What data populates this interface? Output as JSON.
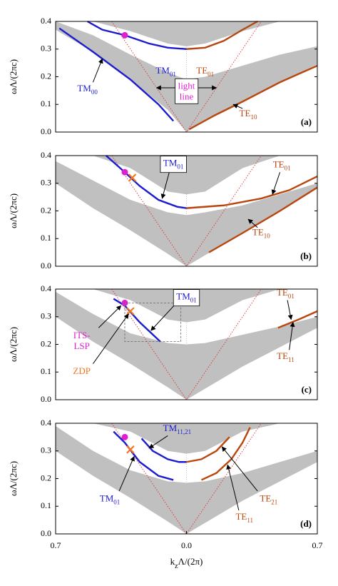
{
  "chart_data": [
    {
      "type": "band-diagram",
      "ylabel": "ωΛ/(2πc)",
      "panel_label": "(a)",
      "xlim": [
        -0.7,
        0.7
      ],
      "ylim": [
        0,
        0.4
      ],
      "yticks": [
        {
          "value": 0,
          "label": "0.0"
        },
        0.1,
        0.2,
        0.3,
        0.4
      ],
      "band_color": "#c0c0c0",
      "band_x": [
        -0.7,
        -0.5,
        -0.3,
        -0.1,
        0,
        0.1,
        0.3,
        0.5,
        0.7
      ],
      "bands": [
        {
          "lower": [
            0.4,
            0.4,
            0.365,
            0.32,
            0.31,
            0.32,
            0.365,
            0.4,
            0.4
          ],
          "upper": [
            0.4,
            0.4,
            0.4,
            0.4,
            0.4,
            0.4,
            0.4,
            0.4,
            0.4
          ]
        },
        {
          "lower": [
            0.37,
            0.29,
            0.19,
            0.08,
            0,
            0.04,
            0.11,
            0.18,
            0.245
          ],
          "upper": [
            0.4,
            0.35,
            0.28,
            0.215,
            0.19,
            0.2,
            0.24,
            0.28,
            0.31
          ]
        }
      ],
      "light_line": {
        "color": "#e03030",
        "x": [
          -0.4,
          0,
          0.4
        ],
        "y": [
          0.4,
          0,
          0.4
        ]
      },
      "series": [
        {
          "color": "#1c1ccf",
          "x": [
            -0.68,
            -0.5,
            -0.3,
            -0.15,
            -0.07
          ],
          "values": [
            0.375,
            0.29,
            0.19,
            0.1,
            0.04
          ]
        },
        {
          "color": "#1c1ccf",
          "x": [
            -0.53,
            -0.45,
            -0.33,
            -0.2,
            -0.1,
            0
          ],
          "values": [
            0.4,
            0.37,
            0.35,
            0.32,
            0.305,
            0.3
          ]
        },
        {
          "color": "#b8470f",
          "x": [
            0,
            0.1,
            0.2,
            0.3,
            0.38
          ],
          "values": [
            0.3,
            0.305,
            0.33,
            0.37,
            0.4
          ]
        },
        {
          "color": "#b8470f",
          "x": [
            0.015,
            0.15,
            0.3,
            0.5,
            0.7
          ],
          "values": [
            0.01,
            0.06,
            0.11,
            0.18,
            0.24
          ]
        }
      ],
      "markers": [
        {
          "shape": "dot",
          "color": "#e020d0",
          "x": -0.33,
          "y": 0.35
        }
      ],
      "annotations": [
        {
          "text": "TM",
          "sub": "00",
          "color": "#1c1ccf"
        },
        {
          "text": "TM",
          "sub": "01",
          "color": "#1c1ccf"
        },
        {
          "text": "TE",
          "sub": "01",
          "color": "#b8470f"
        },
        {
          "text": "TE",
          "sub": "10",
          "color": "#b8470f"
        },
        {
          "lines": [
            "light",
            "line"
          ],
          "color": "#e020d0",
          "boxed": true
        }
      ]
    },
    {
      "type": "band-diagram",
      "ylabel": "ωΛ/(2πc)",
      "panel_label": "(b)",
      "xlim": [
        -0.7,
        0.7
      ],
      "ylim": [
        0,
        0.4
      ],
      "yticks": [
        {
          "value": 0,
          "label": "0.0"
        },
        0.1,
        0.2,
        0.3,
        0.4
      ],
      "band_color": "#c0c0c0",
      "band_x": [
        -0.7,
        -0.5,
        -0.3,
        -0.1,
        0,
        0.1,
        0.3,
        0.5,
        0.7
      ],
      "bands": [
        {
          "lower": [
            0.4,
            0.4,
            0.355,
            0.27,
            0.26,
            0.27,
            0.355,
            0.4,
            0.4
          ],
          "upper": [
            0.4,
            0.4,
            0.4,
            0.4,
            0.4,
            0.4,
            0.4,
            0.4,
            0.4
          ]
        },
        {
          "lower": [
            0.3,
            0.21,
            0.13,
            0.045,
            0,
            0.04,
            0.12,
            0.2,
            0.285
          ],
          "upper": [
            0.38,
            0.31,
            0.24,
            0.195,
            0.185,
            0.195,
            0.22,
            0.26,
            0.3
          ]
        }
      ],
      "light_line": {
        "color": "#e03030",
        "x": [
          -0.4,
          0,
          0.4
        ],
        "y": [
          0.4,
          0,
          0.4
        ]
      },
      "series": [
        {
          "color": "#1c1ccf",
          "x": [
            -0.43,
            -0.38,
            -0.33,
            -0.25,
            -0.15,
            -0.05,
            0
          ],
          "values": [
            0.4,
            0.37,
            0.34,
            0.29,
            0.24,
            0.215,
            0.21
          ]
        },
        {
          "color": "#b8470f",
          "x": [
            0,
            0.2,
            0.4,
            0.55,
            0.7
          ],
          "values": [
            0.21,
            0.22,
            0.245,
            0.275,
            0.325
          ]
        },
        {
          "color": "#b8470f",
          "x": [
            0.12,
            0.3,
            0.5,
            0.7
          ],
          "values": [
            0.05,
            0.12,
            0.2,
            0.285
          ]
        }
      ],
      "markers": [
        {
          "shape": "dot",
          "color": "#e020d0",
          "x": -0.33,
          "y": 0.34
        },
        {
          "shape": "cross",
          "color": "#f07820",
          "x": -0.29,
          "y": 0.32
        }
      ],
      "annotations": [
        {
          "text": "TM",
          "sub": "01",
          "color": "#1c1ccf",
          "boxed": true
        },
        {
          "text": "TE",
          "sub": "01",
          "color": "#b8470f"
        },
        {
          "text": "TE",
          "sub": "10",
          "color": "#b8470f"
        }
      ]
    },
    {
      "type": "band-diagram",
      "ylabel": "ωΛ/(2πc)",
      "panel_label": "(c)",
      "xlim": [
        -0.7,
        0.7
      ],
      "ylim": [
        0,
        0.4
      ],
      "yticks": [
        {
          "value": 0,
          "label": "0.0"
        },
        0.1,
        0.2,
        0.3,
        0.4
      ],
      "band_color": "#c0c0c0",
      "band_x": [
        -0.7,
        -0.5,
        -0.3,
        -0.1,
        0,
        0.1,
        0.3,
        0.5,
        0.7
      ],
      "bands": [
        {
          "lower": [
            0.4,
            0.4,
            0.36,
            0.29,
            0.28,
            0.29,
            0.36,
            0.4,
            0.4
          ],
          "upper": [
            0.4,
            0.4,
            0.4,
            0.4,
            0.4,
            0.4,
            0.4,
            0.4,
            0.4
          ]
        },
        {
          "lower": [
            0.3,
            0.21,
            0.13,
            0.045,
            0,
            0.04,
            0.12,
            0.19,
            0.26
          ],
          "upper": [
            0.39,
            0.31,
            0.24,
            0.205,
            0.2,
            0.205,
            0.235,
            0.265,
            0.3
          ]
        }
      ],
      "light_line": {
        "color": "#e03030",
        "x": [
          -0.4,
          0,
          0.4
        ],
        "y": [
          0.4,
          0,
          0.4
        ]
      },
      "series": [
        {
          "color": "#1c1ccf",
          "x": [
            -0.39,
            -0.33,
            -0.25,
            -0.14
          ],
          "values": [
            0.365,
            0.34,
            0.28,
            0.21
          ]
        },
        {
          "color": "#b8470f",
          "x": [
            0.49,
            0.6,
            0.7
          ],
          "values": [
            0.26,
            0.29,
            0.32
          ]
        }
      ],
      "markers": [
        {
          "shape": "dot",
          "color": "#e020d0",
          "x": -0.33,
          "y": 0.35
        },
        {
          "shape": "cross",
          "color": "#f07820",
          "x": -0.3,
          "y": 0.32
        }
      ],
      "annotations": [
        {
          "text": "TM",
          "sub": "01",
          "color": "#1c1ccf",
          "boxed": true
        },
        {
          "text": "TE",
          "sub": "01",
          "color": "#b8470f"
        },
        {
          "text": "TE",
          "sub": "11",
          "color": "#b8470f"
        },
        {
          "lines": [
            "ITS-",
            "LSP"
          ],
          "color": "#e020d0"
        },
        {
          "lines": [
            "ZDP"
          ],
          "color": "#f07820"
        }
      ]
    },
    {
      "type": "band-diagram",
      "ylabel": "ωΛ/(2πc)",
      "panel_label": "(d)",
      "xlabel": {
        "main": "k",
        "sub": "z",
        "tail": "Λ/(2π)"
      },
      "xlim": [
        -0.7,
        0.7
      ],
      "ylim": [
        0,
        0.4
      ],
      "yticks": [
        {
          "value": 0,
          "label": "0.0"
        },
        0.1,
        0.2,
        0.3,
        0.4
      ],
      "xticks": [
        {
          "value": -0.7,
          "label": "0.7"
        },
        {
          "value": 0,
          "label": "0.0"
        },
        {
          "value": 0.7,
          "label": "0.7"
        }
      ],
      "band_color": "#c0c0c0",
      "band_x": [
        -0.7,
        -0.5,
        -0.3,
        -0.1,
        0,
        0.1,
        0.3,
        0.5,
        0.7
      ],
      "bands": [
        {
          "lower": [
            0.4,
            0.4,
            0.37,
            0.3,
            0.29,
            0.3,
            0.37,
            0.4,
            0.4
          ],
          "upper": [
            0.4,
            0.4,
            0.4,
            0.4,
            0.4,
            0.4,
            0.4,
            0.4,
            0.4
          ]
        },
        {
          "lower": [
            0.3,
            0.21,
            0.13,
            0.045,
            0,
            0.04,
            0.12,
            0.19,
            0.26
          ],
          "upper": [
            0.39,
            0.3,
            0.23,
            0.19,
            0.185,
            0.19,
            0.22,
            0.26,
            0.3
          ]
        }
      ],
      "light_line": {
        "color": "#e03030",
        "x": [
          -0.4,
          0,
          0.4
        ],
        "y": [
          0.4,
          0,
          0.4
        ]
      },
      "series": [
        {
          "color": "#1c1ccf",
          "x": [
            -0.39,
            -0.33,
            -0.25,
            -0.15,
            -0.07
          ],
          "values": [
            0.37,
            0.33,
            0.26,
            0.21,
            0.195
          ]
        },
        {
          "color": "#1c1ccf",
          "x": [
            -0.24,
            -0.18,
            -0.1,
            -0.04,
            0
          ],
          "values": [
            0.345,
            0.3,
            0.27,
            0.26,
            0.26
          ]
        },
        {
          "color": "#b8470f",
          "x": [
            0,
            0.08,
            0.16,
            0.23
          ],
          "values": [
            0.26,
            0.27,
            0.3,
            0.35
          ]
        },
        {
          "color": "#b8470f",
          "x": [
            0.08,
            0.16,
            0.24,
            0.3,
            0.34
          ],
          "values": [
            0.195,
            0.22,
            0.27,
            0.33,
            0.385
          ]
        }
      ],
      "markers": [
        {
          "shape": "dot",
          "color": "#e020d0",
          "x": -0.33,
          "y": 0.35
        },
        {
          "shape": "cross",
          "color": "#f07820",
          "x": -0.3,
          "y": 0.305
        }
      ],
      "annotations": [
        {
          "text": "TM",
          "sub": "11,21",
          "color": "#1c1ccf"
        },
        {
          "text": "TM",
          "sub": "01",
          "color": "#1c1ccf"
        },
        {
          "text": "TE",
          "sub": "21",
          "color": "#b8470f"
        },
        {
          "text": "TE",
          "sub": "11",
          "color": "#b8470f"
        }
      ]
    }
  ]
}
